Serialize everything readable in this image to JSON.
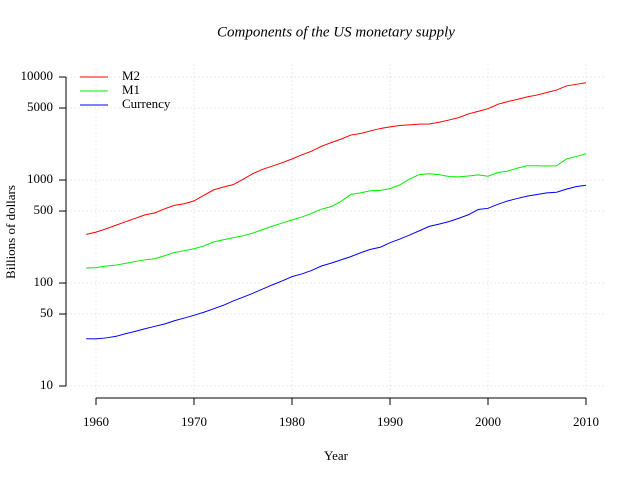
{
  "chart_data": {
    "type": "line",
    "title": "Components of the US monetary supply",
    "xlabel": "Year",
    "ylabel": "Billions of dollars",
    "log_y": true,
    "grid": true,
    "legend": "topleft",
    "xlim": [
      1957,
      2012
    ],
    "ylim": [
      7.6,
      13200
    ],
    "xticks": [
      1960,
      1970,
      1980,
      1990,
      2000,
      2010
    ],
    "yticks": [
      10,
      50,
      100,
      500,
      1000,
      5000,
      10000
    ],
    "x": [
      1959,
      1960,
      1961,
      1962,
      1963,
      1964,
      1965,
      1966,
      1967,
      1968,
      1969,
      1970,
      1971,
      1972,
      1973,
      1974,
      1975,
      1976,
      1977,
      1978,
      1979,
      1980,
      1981,
      1982,
      1983,
      1984,
      1985,
      1986,
      1987,
      1988,
      1989,
      1990,
      1991,
      1992,
      1993,
      1994,
      1995,
      1996,
      1997,
      1998,
      1999,
      2000,
      2001,
      2002,
      2003,
      2004,
      2005,
      2006,
      2007,
      2008,
      2009,
      2010
    ],
    "series": [
      {
        "name": "M2",
        "color": "#ff0000",
        "values": [
          297,
          312,
          335,
          363,
          393,
          425,
          459,
          480,
          525,
          567,
          588,
          627,
          710,
          802,
          856,
          902,
          1016,
          1152,
          1270,
          1366,
          1474,
          1600,
          1756,
          1906,
          2124,
          2307,
          2494,
          2732,
          2832,
          2995,
          3159,
          3279,
          3380,
          3434,
          3487,
          3503,
          3642,
          3820,
          4035,
          4381,
          4639,
          4925,
          5433,
          5772,
          6067,
          6418,
          6681,
          7071,
          7471,
          8192,
          8497,
          8795
        ]
      },
      {
        "name": "M1",
        "color": "#00ee00",
        "values": [
          140,
          141,
          146,
          149,
          155,
          162,
          168,
          172,
          184,
          198,
          206,
          215,
          229,
          250,
          263,
          275,
          288,
          305,
          330,
          357,
          382,
          409,
          437,
          475,
          521,
          552,
          620,
          725,
          750,
          787,
          794,
          825,
          897,
          1025,
          1129,
          1150,
          1127,
          1081,
          1073,
          1095,
          1122,
          1088,
          1183,
          1220,
          1306,
          1376,
          1375,
          1367,
          1375,
          1603,
          1694,
          1800
        ]
      },
      {
        "name": "Currency",
        "color": "#0000ff",
        "values": [
          28.8,
          28.7,
          29.3,
          30.3,
          32.2,
          33.9,
          36.0,
          38.0,
          40.0,
          43.0,
          45.7,
          48.6,
          52.0,
          56.2,
          60.8,
          67.0,
          72.8,
          79.5,
          87.4,
          96.0,
          104.8,
          115.3,
          122.5,
          132.5,
          146.2,
          156.1,
          167.7,
          180.4,
          196.7,
          212.0,
          222.3,
          246.5,
          267.1,
          292.1,
          321.6,
          354.5,
          372.8,
          394.5,
          424.4,
          459.9,
          517.1,
          531.2,
          581.1,
          626.2,
          662.5,
          697.6,
          723.9,
          750.1,
          760.6,
          816.2,
          863.7,
          890
        ]
      }
    ]
  }
}
